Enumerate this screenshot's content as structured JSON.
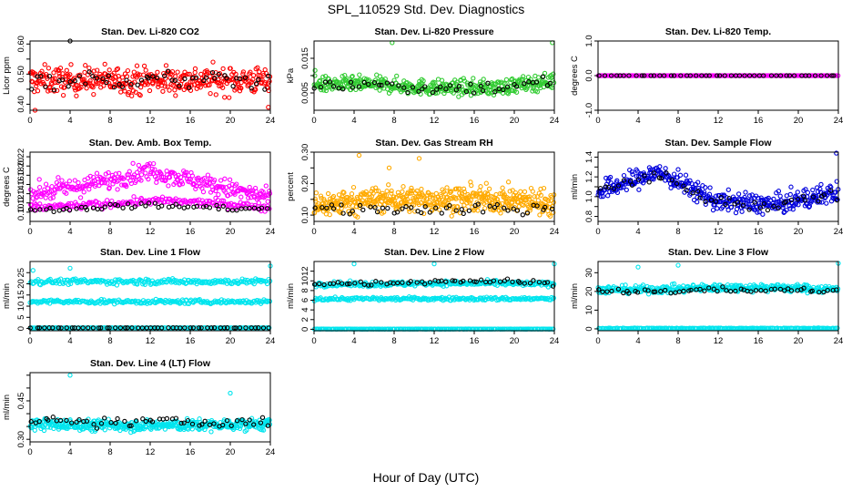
{
  "page": {
    "title": "SPL_110529  Std. Dev. Diagnostics",
    "x_caption": "Hour of Day (UTC)"
  },
  "colors": {
    "red": "#ff0000",
    "green": "#33cc33",
    "magenta": "#ff00ff",
    "orange": "#ffaa00",
    "blue": "#0000dd",
    "cyan": "#00e5ee",
    "black": "#000000"
  },
  "chart_data": [
    {
      "type": "scatter",
      "title": "Stan. Dev. Li-820 CO2",
      "ylabel": "Licor ppm",
      "xlim": [
        0,
        24
      ],
      "xticks": [
        0,
        4,
        8,
        12,
        16,
        20,
        24
      ],
      "ylim": [
        0.38,
        0.61
      ],
      "yticks": [
        0.4,
        0.45,
        0.5,
        0.55,
        0.6
      ],
      "ytick_labels": [
        "0.40",
        "",
        "0.50",
        "",
        "0.60"
      ],
      "grid": false,
      "series": [
        {
          "color": "red",
          "base": [
            0.48,
            0.48,
            0.48,
            0.48,
            0.48
          ],
          "spread": 0.045,
          "n": 380
        },
        {
          "color": "black",
          "base": [
            0.48,
            0.48,
            0.48,
            0.48,
            0.48
          ],
          "spread": 0.03,
          "n": 55
        }
      ],
      "outliers": [
        {
          "x": 4.0,
          "y": 0.61,
          "color": "black"
        },
        {
          "x": 0.5,
          "y": 0.38,
          "color": "red"
        },
        {
          "x": 23.8,
          "y": 0.39,
          "color": "red"
        }
      ]
    },
    {
      "type": "scatter",
      "title": "Stan. Dev. Li-820 Pressure",
      "ylabel": "kPa",
      "xlim": [
        0,
        24
      ],
      "xticks": [
        0,
        4,
        8,
        12,
        16,
        20,
        24
      ],
      "ylim": [
        0.0,
        0.02
      ],
      "yticks": [
        0.005,
        0.01,
        0.015
      ],
      "ytick_labels": [
        "0.005",
        "",
        "0.015"
      ],
      "grid": false,
      "series": [
        {
          "color": "green",
          "base": [
            0.0075,
            0.0075,
            0.0065,
            0.0065,
            0.0085
          ],
          "spread": 0.0022,
          "n": 420
        },
        {
          "color": "black",
          "base": [
            0.0075,
            0.0075,
            0.0065,
            0.0065,
            0.0085
          ],
          "spread": 0.0018,
          "n": 50
        }
      ],
      "outliers": [
        {
          "x": 7.8,
          "y": 0.0195,
          "color": "green"
        },
        {
          "x": 23.8,
          "y": 0.0195,
          "color": "green"
        },
        {
          "x": 0.1,
          "y": 0.0115,
          "color": "green"
        }
      ]
    },
    {
      "type": "scatter",
      "title": "Stan. Dev. Li-820 Temp.",
      "ylabel": "degrees C",
      "xlim": [
        0,
        24
      ],
      "xticks": [
        0,
        4,
        8,
        12,
        16,
        20,
        24
      ],
      "ylim": [
        -1.0,
        1.0
      ],
      "yticks": [
        -1.0,
        0.0,
        1.0
      ],
      "ytick_labels": [
        "-1.0",
        "0.0",
        "1.0"
      ],
      "grid": false,
      "series": [
        {
          "color": "magenta",
          "base": [
            0,
            0,
            0,
            0,
            0
          ],
          "spread": 0,
          "n": 240
        },
        {
          "color": "black",
          "base": [
            0,
            0,
            0,
            0,
            0
          ],
          "spread": 0,
          "n": 48
        }
      ],
      "outliers": []
    },
    {
      "type": "scatter",
      "title": "Stan. Dev. Amb. Box Temp.",
      "ylabel": "degrees C",
      "xlim": [
        0,
        24
      ],
      "xticks": [
        0,
        4,
        8,
        12,
        16,
        20,
        24
      ],
      "ylim": [
        0.08,
        0.23
      ],
      "yticks": [
        0.1,
        0.12,
        0.14,
        0.16,
        0.18,
        0.2,
        0.22
      ],
      "ytick_labels": [
        "0.10",
        "0.12",
        "0.14",
        "0.16",
        "0.18",
        "0.20",
        "0.22"
      ],
      "grid": false,
      "series": [
        {
          "color": "magenta",
          "base": [
            0.14,
            0.16,
            0.19,
            0.16,
            0.13
          ],
          "spread": 0.02,
          "n": 300
        },
        {
          "color": "magenta",
          "base": [
            0.11,
            0.115,
            0.125,
            0.12,
            0.11
          ],
          "spread": 0.008,
          "n": 200
        },
        {
          "color": "black",
          "base": [
            0.105,
            0.11,
            0.115,
            0.11,
            0.105
          ],
          "spread": 0.006,
          "n": 55
        }
      ],
      "outliers": []
    },
    {
      "type": "scatter",
      "title": "Stan. Dev. Gas Stream RH",
      "ylabel": "percent",
      "xlim": [
        0,
        24
      ],
      "xticks": [
        0,
        4,
        8,
        12,
        16,
        20,
        24
      ],
      "ylim": [
        0.08,
        0.3
      ],
      "yticks": [
        0.1,
        0.15,
        0.2,
        0.25,
        0.3
      ],
      "ytick_labels": [
        "0.10",
        "",
        "0.20",
        "",
        "0.30"
      ],
      "grid": false,
      "series": [
        {
          "color": "orange",
          "base": [
            0.13,
            0.15,
            0.15,
            0.15,
            0.14
          ],
          "spread": 0.04,
          "n": 500
        },
        {
          "color": "black",
          "base": [
            0.12,
            0.12,
            0.12,
            0.12,
            0.12
          ],
          "spread": 0.02,
          "n": 50
        }
      ],
      "outliers": [
        {
          "x": 4.5,
          "y": 0.29,
          "color": "orange"
        },
        {
          "x": 10.5,
          "y": 0.28,
          "color": "orange"
        },
        {
          "x": 7.5,
          "y": 0.25,
          "color": "orange"
        }
      ]
    },
    {
      "type": "scatter",
      "title": "Stan. Dev. Sample Flow",
      "ylabel": "ml/min",
      "xlim": [
        0,
        24
      ],
      "xticks": [
        0,
        4,
        8,
        12,
        16,
        20,
        24
      ],
      "ylim": [
        0.75,
        1.45
      ],
      "yticks": [
        0.8,
        0.9,
        1.0,
        1.1,
        1.2,
        1.3,
        1.4
      ],
      "ytick_labels": [
        "0.8",
        "",
        "1.0",
        "",
        "1.2",
        "",
        "1.4"
      ],
      "grid": false,
      "series": [
        {
          "color": "blue",
          "base": [
            1.05,
            1.25,
            0.95,
            0.92,
            1.05
          ],
          "spread": 0.1,
          "n": 400
        },
        {
          "color": "black",
          "base": [
            1.05,
            1.22,
            0.95,
            0.92,
            1.05
          ],
          "spread": 0.07,
          "n": 50
        }
      ],
      "outliers": [
        {
          "x": 23.8,
          "y": 1.44,
          "color": "blue"
        }
      ]
    },
    {
      "type": "scatter",
      "title": "Stan. Dev. Line 1 Flow",
      "ylabel": "ml/min",
      "xlim": [
        0,
        24
      ],
      "xticks": [
        0,
        4,
        8,
        12,
        16,
        20,
        24
      ],
      "ylim": [
        -1,
        30
      ],
      "yticks": [
        0,
        5,
        10,
        15,
        20,
        25
      ],
      "ytick_labels": [
        "0",
        "5",
        "10",
        "15",
        "20",
        "25"
      ],
      "grid": false,
      "series": [
        {
          "color": "cyan",
          "base": [
            21,
            21,
            21,
            21,
            21
          ],
          "spread": 1.2,
          "n": 220
        },
        {
          "color": "cyan",
          "base": [
            12,
            12,
            12,
            12,
            12
          ],
          "spread": 0.9,
          "n": 220
        },
        {
          "color": "cyan",
          "base": [
            0.3,
            0.3,
            0.3,
            0.3,
            0.3
          ],
          "spread": 0.05,
          "n": 150
        },
        {
          "color": "black",
          "base": [
            0.3,
            0.3,
            0.3,
            0.3,
            0.3
          ],
          "spread": 0.05,
          "n": 55
        }
      ],
      "outliers": [
        {
          "x": 4.0,
          "y": 27,
          "color": "cyan"
        },
        {
          "x": 24.0,
          "y": 28,
          "color": "cyan"
        },
        {
          "x": 0.3,
          "y": 26,
          "color": "cyan"
        }
      ]
    },
    {
      "type": "scatter",
      "title": "Stan. Dev. Line 2 Flow",
      "ylabel": "ml/min",
      "xlim": [
        0,
        24
      ],
      "xticks": [
        0,
        4,
        8,
        12,
        16,
        20,
        24
      ],
      "ylim": [
        -0.3,
        14
      ],
      "yticks": [
        0,
        2,
        4,
        6,
        8,
        10,
        12
      ],
      "ytick_labels": [
        "0",
        "2",
        "4",
        "6",
        "8",
        "10",
        "12"
      ],
      "grid": false,
      "series": [
        {
          "color": "cyan",
          "base": [
            9.3,
            9.3,
            9.5,
            9.5,
            9.3
          ],
          "spread": 0.5,
          "n": 260
        },
        {
          "color": "cyan",
          "base": [
            6.3,
            6.3,
            6.3,
            6.3,
            6.3
          ],
          "spread": 0.35,
          "n": 220
        },
        {
          "color": "cyan",
          "base": [
            0.05,
            0.05,
            0.05,
            0.05,
            0.05
          ],
          "spread": 0.03,
          "n": 200
        },
        {
          "color": "black",
          "base": [
            9.5,
            9.5,
            10.0,
            10.0,
            9.5
          ],
          "spread": 0.5,
          "n": 55
        }
      ],
      "outliers": [
        {
          "x": 4.0,
          "y": 13.5,
          "color": "cyan"
        },
        {
          "x": 12.0,
          "y": 13.5,
          "color": "cyan"
        },
        {
          "x": 24.0,
          "y": 13.5,
          "color": "cyan"
        }
      ]
    },
    {
      "type": "scatter",
      "title": "Stan. Dev. Line 3 Flow",
      "ylabel": "ml/min",
      "xlim": [
        0,
        24
      ],
      "xticks": [
        0,
        4,
        8,
        12,
        16,
        20,
        24
      ],
      "ylim": [
        -1,
        36
      ],
      "yticks": [
        0,
        10,
        20,
        30
      ],
      "ytick_labels": [
        "0",
        "10",
        "20",
        "30"
      ],
      "grid": false,
      "series": [
        {
          "color": "cyan",
          "base": [
            21,
            21,
            22,
            22,
            21
          ],
          "spread": 2.0,
          "n": 380
        },
        {
          "color": "cyan",
          "base": [
            0.3,
            0.3,
            0.3,
            0.3,
            0.3
          ],
          "spread": 0.2,
          "n": 200
        },
        {
          "color": "black",
          "base": [
            20,
            20,
            21,
            21,
            20
          ],
          "spread": 1.3,
          "n": 55
        }
      ],
      "outliers": [
        {
          "x": 4.0,
          "y": 33,
          "color": "cyan"
        },
        {
          "x": 8.0,
          "y": 34,
          "color": "cyan"
        },
        {
          "x": 24.0,
          "y": 35,
          "color": "cyan"
        }
      ]
    },
    {
      "type": "scatter",
      "title": "Stan. Dev. Line 4 (LT) Flow",
      "ylabel": "ml/min",
      "xlim": [
        0,
        24
      ],
      "xticks": [
        0,
        4,
        8,
        12,
        16,
        20,
        24
      ],
      "ylim": [
        0.29,
        0.56
      ],
      "yticks": [
        0.3,
        0.35,
        0.4,
        0.45,
        0.5,
        0.55
      ],
      "ytick_labels": [
        "0.30",
        "",
        "",
        "0.45",
        "",
        ""
      ],
      "grid": false,
      "series": [
        {
          "color": "cyan",
          "base": [
            0.36,
            0.355,
            0.355,
            0.355,
            0.36
          ],
          "spread": 0.022,
          "n": 420
        },
        {
          "color": "black",
          "base": [
            0.37,
            0.365,
            0.37,
            0.365,
            0.37
          ],
          "spread": 0.018,
          "n": 55
        }
      ],
      "outliers": [
        {
          "x": 4.0,
          "y": 0.55,
          "color": "cyan"
        },
        {
          "x": 20.0,
          "y": 0.48,
          "color": "cyan"
        }
      ]
    }
  ]
}
